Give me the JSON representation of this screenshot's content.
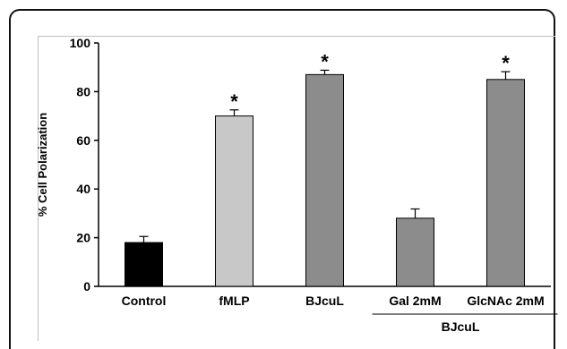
{
  "chart_data": {
    "type": "bar",
    "categories": [
      "Control",
      "fMLP",
      "BJcuL",
      "Gal 2mM",
      "GlcNAc 2mM"
    ],
    "values": [
      18,
      70,
      87,
      28,
      85
    ],
    "errors": [
      2.5,
      2.5,
      1.8,
      3.8,
      3.2
    ],
    "significant": [
      false,
      true,
      true,
      false,
      true
    ],
    "significance_marker": "*",
    "colors": [
      "#000000",
      "#c8c8c8",
      "#8c8c8c",
      "#8c8c8c",
      "#8c8c8c"
    ],
    "ylabel": "% Cell Polarization",
    "ylim": [
      0,
      100
    ],
    "yticks": [
      0,
      20,
      40,
      60,
      80,
      100
    ],
    "group_label": "BJcuL",
    "group_categories": [
      "Gal 2mM",
      "GlcNAc 2mM"
    ],
    "grid": false
  }
}
